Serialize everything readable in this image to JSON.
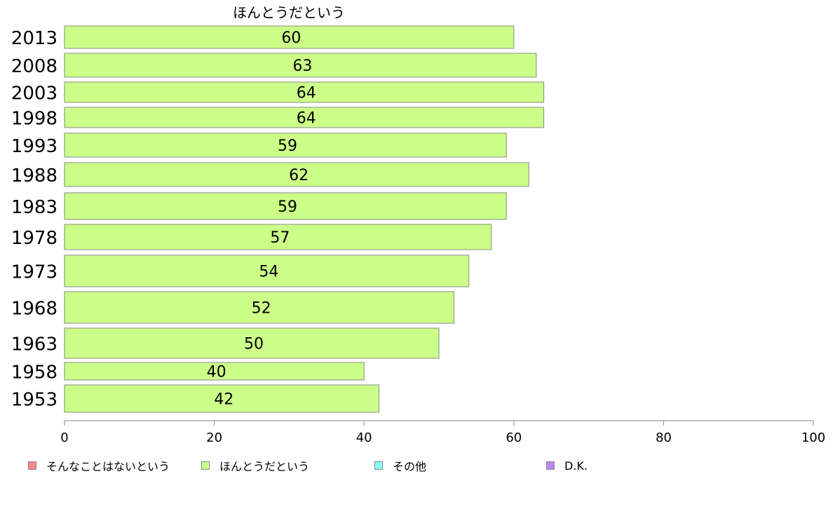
{
  "chart_data": {
    "type": "bar",
    "orientation": "horizontal",
    "title": "ほんとうだという",
    "categories": [
      "2013",
      "2008",
      "2003",
      "1998",
      "1993",
      "1988",
      "1983",
      "1978",
      "1973",
      "1968",
      "1963",
      "1958",
      "1953"
    ],
    "series": [
      {
        "name": "ほんとうだという",
        "color": "#ccff88",
        "values": [
          60,
          63,
          64,
          64,
          59,
          62,
          59,
          57,
          54,
          52,
          50,
          40,
          42
        ]
      }
    ],
    "xlim": [
      0,
      100
    ],
    "x_ticks": [
      "0",
      "20",
      "40",
      "60",
      "80",
      "100"
    ],
    "grid": false,
    "legend_position": "bottom"
  },
  "legend": [
    {
      "label": "そんなことはないという",
      "color": "#ff8888"
    },
    {
      "label": "ほんとうだという",
      "color": "#ccff88"
    },
    {
      "label": "その他",
      "color": "#88ffff"
    },
    {
      "label": "D.K.",
      "color": "#bb88ee"
    }
  ]
}
